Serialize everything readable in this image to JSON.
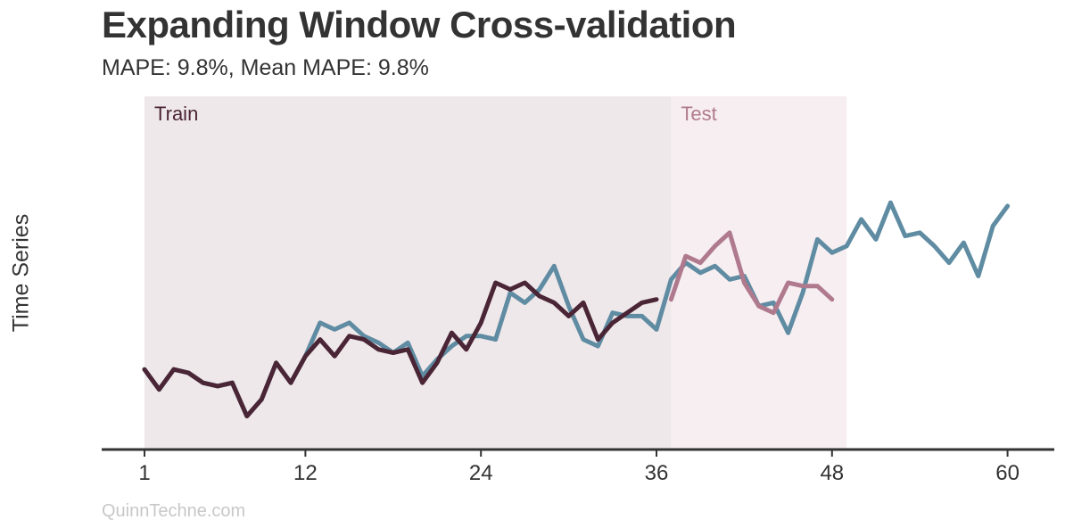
{
  "chart_data": {
    "type": "line",
    "title": "Expanding Window Cross-validation",
    "subtitle": "MAPE: 9.8%, Mean MAPE: 9.8%",
    "ylabel": "Time Series",
    "xlim": [
      1,
      61
    ],
    "ylim": [
      0,
      100
    ],
    "x_ticks": [
      1,
      12,
      24,
      36,
      48,
      60
    ],
    "grid": false,
    "regions": [
      {
        "label": "Train",
        "start": 1,
        "end": 37,
        "color": "#efe8ea",
        "text_color": "#4a2535"
      },
      {
        "label": "Test",
        "start": 37,
        "end": 49,
        "color": "#f7eef1",
        "text_color": "#b07a8e"
      }
    ],
    "series": [
      {
        "color": "#5f8ca2",
        "x": [
          1,
          2,
          3,
          4,
          5,
          6,
          7,
          8,
          9,
          10,
          11,
          12,
          13,
          14,
          15,
          16,
          17,
          18,
          19,
          20,
          21,
          22,
          23,
          24,
          25,
          26,
          27,
          28,
          29,
          30,
          31,
          32,
          33,
          34,
          35,
          36,
          37,
          38,
          39,
          40,
          41,
          42,
          43,
          44,
          45,
          46,
          47,
          48,
          49,
          50,
          51,
          52,
          53,
          54,
          55,
          56,
          57,
          58,
          59,
          60
        ],
        "values": [
          24,
          18,
          24,
          23,
          20,
          19,
          20,
          10,
          15,
          26,
          20,
          28,
          38,
          36,
          38,
          34,
          32,
          29,
          32,
          22,
          27,
          31,
          34,
          34,
          33,
          47,
          44,
          48,
          55,
          43,
          33,
          31,
          41,
          40,
          40,
          36,
          51,
          56,
          53,
          55,
          51,
          52,
          43,
          44,
          35,
          47,
          63,
          59,
          61,
          69,
          63,
          74,
          64,
          65,
          61,
          56,
          62,
          52,
          67,
          73
        ]
      },
      {
        "color": "#4a2535",
        "x": [
          1,
          2,
          3,
          4,
          5,
          6,
          7,
          8,
          9,
          10,
          11,
          12,
          13,
          14,
          15,
          16,
          17,
          18,
          19,
          20,
          21,
          22,
          23,
          24,
          25,
          26,
          27,
          28,
          29,
          30,
          31,
          32,
          33,
          34,
          35,
          36
        ],
        "values": [
          24,
          18,
          24,
          23,
          20,
          19,
          20,
          10,
          15,
          26,
          20,
          28,
          33,
          28,
          34,
          33,
          30,
          29,
          30,
          20,
          26,
          35,
          30,
          38,
          50,
          48,
          50,
          46,
          44,
          40,
          44,
          33,
          38,
          41,
          44,
          45
        ]
      },
      {
        "color": "#b07a8e",
        "x": [
          37,
          38,
          39,
          40,
          41,
          42,
          43,
          44,
          45,
          46,
          47,
          48
        ],
        "values": [
          45,
          58,
          56,
          61,
          65,
          50,
          43,
          41,
          50,
          49,
          49,
          45
        ]
      }
    ]
  },
  "watermark": "QuinnTechne.com"
}
